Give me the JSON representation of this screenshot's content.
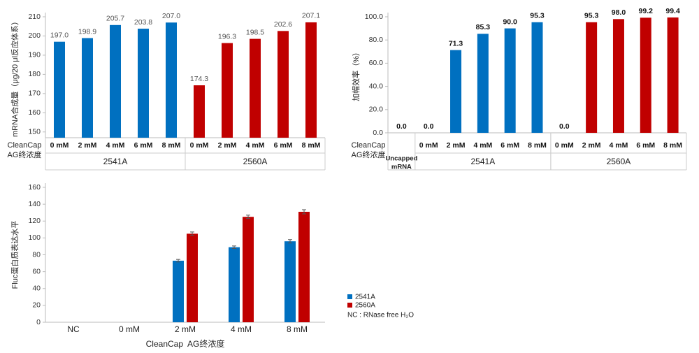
{
  "chart_data": [
    {
      "type": "bar",
      "ylabel": "mRNA合成量（μg/20 μl反应体系）",
      "row_label": [
        "CleanCap",
        "AG终浓度"
      ],
      "ylim": [
        147,
        210
      ],
      "yticks": [
        150,
        160,
        170,
        180,
        190,
        200,
        210
      ],
      "value_label_style": "plain",
      "groups": [
        {
          "name": [
            "2541A"
          ],
          "color": "#0070c0",
          "name_color": "#111111",
          "categories": [
            "0 mM",
            "2 mM",
            "4 mM",
            "6 mM",
            "8 mM"
          ],
          "values": [
            197.0,
            198.9,
            205.7,
            203.8,
            207.0
          ],
          "value_labels": [
            "197.0",
            "198.9",
            "205.7",
            "203.8",
            "207.0"
          ]
        },
        {
          "name": [
            "2560A"
          ],
          "color": "#c00000",
          "name_color": "#e00000",
          "categories": [
            "0 mM",
            "2 mM",
            "4 mM",
            "6 mM",
            "8 mM"
          ],
          "values": [
            174.3,
            196.3,
            198.5,
            202.6,
            207.1
          ],
          "value_labels": [
            "174.3",
            "196.3",
            "198.5",
            "202.6",
            "207.1"
          ]
        }
      ]
    },
    {
      "type": "bar",
      "ylabel": "加帽效率（%）",
      "row_label": [
        "CleanCap",
        "AG终浓度"
      ],
      "ylim": [
        0,
        100
      ],
      "yticks": [
        {
          "value": 0,
          "label": "0.0"
        },
        {
          "value": 20,
          "label": "20.0"
        },
        {
          "value": 40,
          "label": "40.0"
        },
        {
          "value": 60,
          "label": "60.0"
        },
        {
          "value": 80,
          "label": "80.0"
        },
        {
          "value": 100,
          "label": "100.0"
        }
      ],
      "value_label_style": "bold",
      "groups": [
        {
          "name": [
            "Uncapped",
            "mRNA"
          ],
          "color": "#0070c0",
          "name_color": "#111111",
          "name_style": "small",
          "categories": [
            null
          ],
          "values": [
            0.0
          ],
          "value_labels": [
            "0.0"
          ]
        },
        {
          "name": [
            "2541A"
          ],
          "color": "#0070c0",
          "name_color": "#111111",
          "categories": [
            "0 mM",
            "2 mM",
            "4 mM",
            "6 mM",
            "8 mM"
          ],
          "values": [
            0.0,
            71.3,
            85.3,
            90.0,
            95.3
          ],
          "value_labels": [
            "0.0",
            "71.3",
            "85.3",
            "90.0",
            "95.3"
          ]
        },
        {
          "name": [
            "2560A"
          ],
          "color": "#c00000",
          "name_color": "#e00000",
          "categories": [
            "0 mM",
            "2 mM",
            "4 mM",
            "6 mM",
            "8 mM"
          ],
          "values": [
            0.0,
            95.3,
            98.0,
            99.2,
            99.4
          ],
          "value_labels": [
            "0.0",
            "95.3",
            "98.0",
            "99.2",
            "99.4"
          ]
        }
      ]
    },
    {
      "type": "bar",
      "ylabel": "Fluc蛋白质表达水平",
      "xlabel": "CleanCap  AG终浓度",
      "categories": [
        "NC",
        "0 mM",
        "2 mM",
        "4 mM",
        "8 mM"
      ],
      "ylim": [
        0,
        160
      ],
      "yticks": [
        0,
        20,
        40,
        60,
        80,
        100,
        120,
        140,
        160
      ],
      "series": [
        {
          "name": "2541A",
          "color": "#0070c0",
          "name_color": "#111111",
          "values": [
            0,
            0,
            73,
            89,
            96
          ],
          "errors": [
            null,
            null,
            1.5,
            1.5,
            2
          ]
        },
        {
          "name": "2560A",
          "color": "#c00000",
          "name_color": "#e00000",
          "values": [
            0,
            0,
            105,
            125,
            131
          ],
          "errors": [
            null,
            null,
            2,
            2,
            2.5
          ]
        }
      ],
      "note": "NC : RNase free H₂O"
    }
  ]
}
